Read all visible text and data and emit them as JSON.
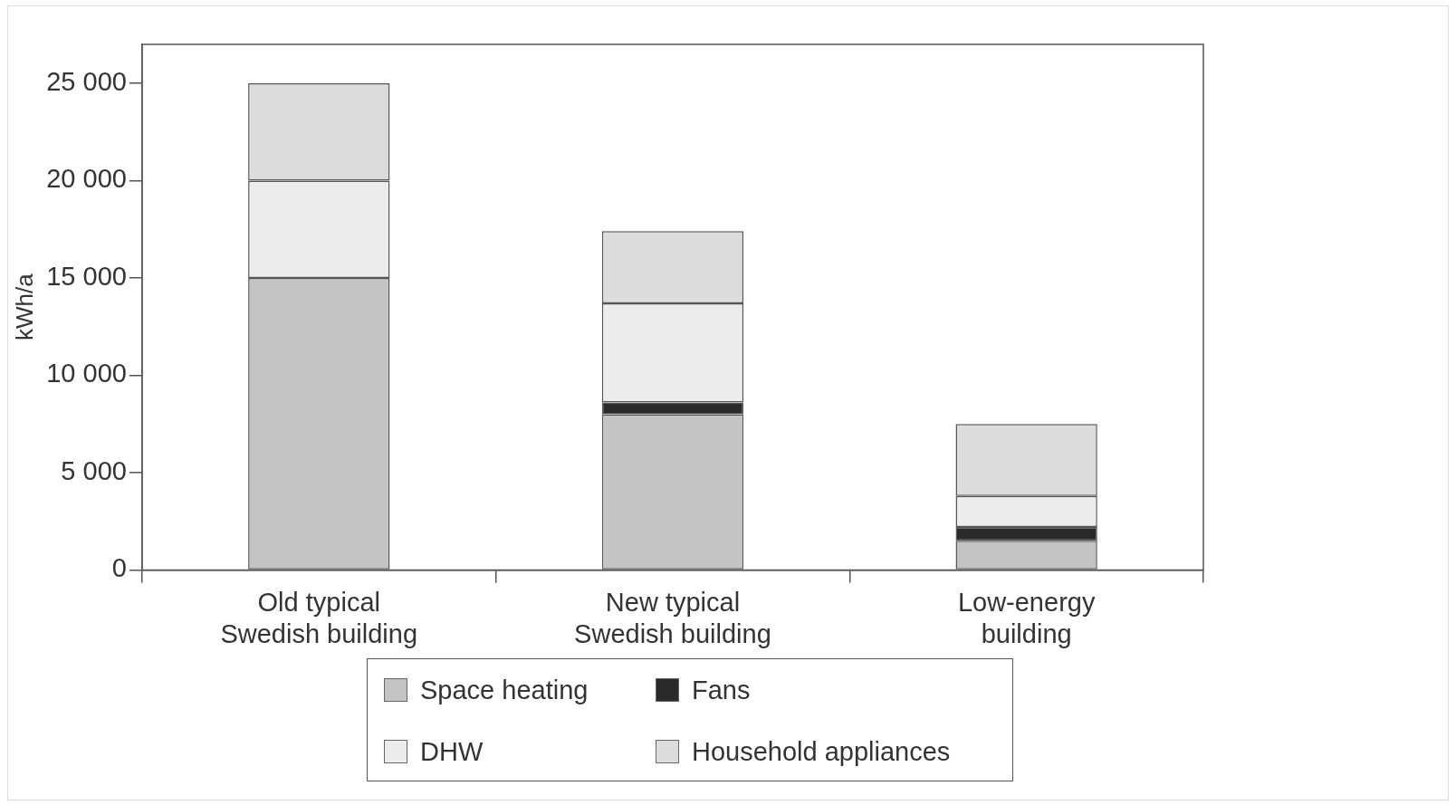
{
  "chart_data": {
    "type": "bar",
    "stacked": true,
    "ylabel": "kWh/a",
    "categories": [
      "Old typical\nSwedish building",
      "New typical\nSwedish building",
      "Low-energy\nbuilding"
    ],
    "series": [
      {
        "name": "Space heating",
        "color": "#c4c4c4",
        "values": [
          15000,
          8000,
          1500
        ]
      },
      {
        "name": "Fans",
        "color": "#2a2a2a",
        "values": [
          0,
          600,
          700
        ]
      },
      {
        "name": "DHW",
        "color": "#ececec",
        "values": [
          5000,
          5100,
          1600
        ]
      },
      {
        "name": "Household appliances",
        "color": "#dcdcdc",
        "values": [
          5000,
          3700,
          3700
        ]
      }
    ],
    "ylim": [
      0,
      27000
    ],
    "yticks": [
      0,
      {
        "value": 5000,
        "label": "5 000"
      },
      {
        "value": 10000,
        "label": "10 000"
      },
      {
        "value": 15000,
        "label": "15 000"
      },
      {
        "value": 20000,
        "label": "20 000"
      },
      {
        "value": 25000,
        "label": "25 000"
      }
    ],
    "grid": false,
    "legend": "bottom"
  }
}
